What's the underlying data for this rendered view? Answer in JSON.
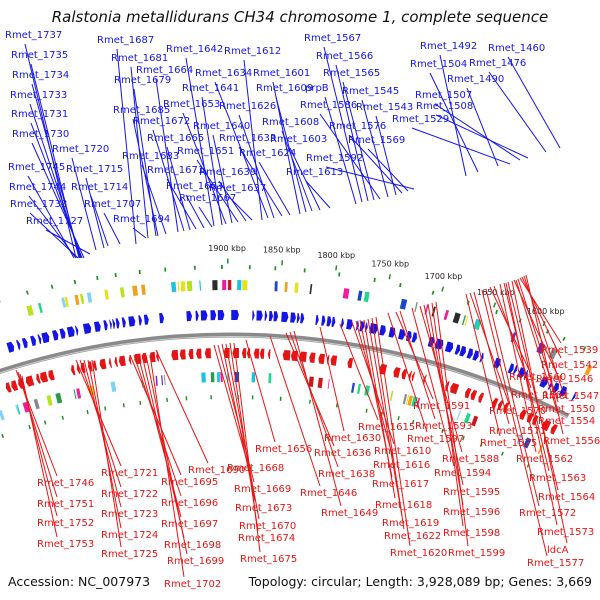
{
  "title": "Ralstonia metallidurans CH34 chromosome 1, complete sequence",
  "footer": {
    "accession": "Accession: NC_007973",
    "stats": "Topology: circular; Length: 3,928,089 bp; Genes: 3,669"
  },
  "colors": {
    "forward": "#1515e6",
    "reverse": "#e61515",
    "backbone": "#8a8a8a",
    "tick": "#1f8f1f"
  },
  "ticks": [
    "1600 kbp",
    "1650 kbp",
    "1700 kbp",
    "1750 kbp",
    "1800 kbp",
    "1850 kbp",
    "1900 kbp"
  ],
  "forward_labels": [
    "Rmet_1737",
    "Rmet_1735",
    "Rmet_1734",
    "Rmet_1733",
    "Rmet_1731",
    "Rmet_1730",
    "Rmet_1745",
    "Rmet_1744",
    "Rmet_1738",
    "Rmet_1727",
    "Rmet_1720",
    "Rmet_1715",
    "Rmet_1714",
    "Rmet_1707",
    "Rmet_1694",
    "Rmet_1687",
    "Rmet_1681",
    "Rmet_1679",
    "Rmet_1685",
    "Rmet_1683",
    "Rmet_1664",
    "Rmet_1672",
    "Rmet_1665",
    "Rmet_1671",
    "Rmet_1663",
    "Rmet_1667",
    "Rmet_1642",
    "Rmet_1641",
    "Rmet_1653",
    "Rmet_1640",
    "Rmet_1651",
    "Rmet_1639",
    "Rmet_1637",
    "Rmet_1612",
    "Rmet_1634",
    "Rmet_1626",
    "Rmet_1633",
    "Rmet_1624",
    "Rmet_1601",
    "Rmet_1609",
    "Rmet_1608",
    "Rmet_1603",
    "Rmet_1613",
    "prpB",
    "Rmet_1567",
    "Rmet_1566",
    "Rmet_1565",
    "Rmet_1586",
    "Rmet_1545",
    "Rmet_1543",
    "Rmet_1576",
    "Rmet_1569",
    "Rmet_1592",
    "Rmet_1492",
    "Rmet_1460",
    "Rmet_1504",
    "Rmet_1476",
    "Rmet_1490",
    "Rmet_1507",
    "Rmet_1508",
    "Rmet_1529"
  ],
  "reverse_labels": [
    "Rmet_1746",
    "Rmet_1751",
    "Rmet_1752",
    "Rmet_1753",
    "Rmet_1721",
    "Rmet_1722",
    "Rmet_1723",
    "Rmet_1724",
    "Rmet_1725",
    "Rmet_1690",
    "Rmet_1695",
    "Rmet_1696",
    "Rmet_1697",
    "Rmet_1698",
    "Rmet_1699",
    "Rmet_1702",
    "Rmet_1656",
    "Rmet_1668",
    "Rmet_1669",
    "Rmet_1673",
    "Rmet_1670",
    "Rmet_1674",
    "Rmet_1675",
    "Rmet_1636",
    "Rmet_1638",
    "Rmet_1646",
    "Rmet_1649",
    "Rmet_1630",
    "Rmet_1615",
    "Rmet_1610",
    "Rmet_1616",
    "Rmet_1617",
    "Rmet_1618",
    "Rmet_1619",
    "Rmet_1622",
    "Rmet_1620",
    "Rmet_1591",
    "Rmet_1593",
    "Rmet_1597",
    "Rmet_1588",
    "Rmet_1594",
    "Rmet_1595",
    "Rmet_1596",
    "Rmet_1598",
    "Rmet_1599",
    "Rmet_1539",
    "Rmet_1542",
    "Rmet_1546",
    "Rmet_1560",
    "Rmet_1547",
    "Rmet_1561",
    "Rmet_1550",
    "Rmet_1570",
    "Rmet_1554",
    "Rmet_1571",
    "Rmet_1575",
    "Rmet_1556",
    "Rmet_1562",
    "Rmet_1563",
    "Rmet_1564",
    "Rmet_1572",
    "Rmet_1573",
    "ldcA",
    "Rmet_1577"
  ]
}
